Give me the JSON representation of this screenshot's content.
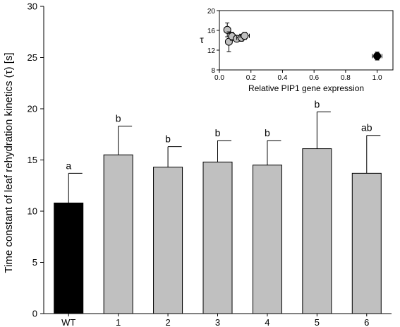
{
  "chart_data": [
    {
      "type": "bar",
      "ylabel": "Time constant of leaf rehydration kinetics  (τ) [s]",
      "xlabel": "",
      "ylim": [
        0,
        30
      ],
      "yticks": [
        0,
        5,
        10,
        15,
        20,
        25,
        30
      ],
      "categories": [
        "WT",
        "1",
        "2",
        "3",
        "4",
        "5",
        "6"
      ],
      "values": [
        10.8,
        15.5,
        14.3,
        14.8,
        14.5,
        16.1,
        13.7
      ],
      "errors": [
        2.9,
        2.8,
        2.0,
        2.1,
        2.4,
        3.6,
        3.7
      ],
      "letters": [
        "a",
        "b",
        "b",
        "b",
        "b",
        "b",
        "ab"
      ],
      "colors": [
        "#000000",
        "#c0c0c0",
        "#c0c0c0",
        "#c0c0c0",
        "#c0c0c0",
        "#c0c0c0",
        "#c0c0c0"
      ],
      "grid": false
    },
    {
      "type": "scatter",
      "placement": "inset top-right",
      "xlabel": "Relative PIP1 gene expression",
      "ylabel": "τ",
      "xlim": [
        0,
        1.1
      ],
      "ylim": [
        8,
        20
      ],
      "xticks": [
        0.0,
        0.2,
        0.4,
        0.6,
        0.8,
        1.0
      ],
      "yticks": [
        8,
        12,
        16,
        20
      ],
      "points": [
        {
          "x": 1.0,
          "y": 10.8,
          "xerr": 0.03,
          "yerr": 0.8,
          "color": "#000000"
        },
        {
          "x": 0.05,
          "y": 16.1,
          "xerr": 0.02,
          "yerr": 1.4,
          "color": "#c0c0c0"
        },
        {
          "x": 0.06,
          "y": 13.7,
          "xerr": 0.02,
          "yerr": 2.0,
          "color": "#c0c0c0"
        },
        {
          "x": 0.08,
          "y": 14.8,
          "xerr": 0.02,
          "yerr": 0.8,
          "color": "#c0c0c0"
        },
        {
          "x": 0.11,
          "y": 14.3,
          "xerr": 0.02,
          "yerr": 0.6,
          "color": "#c0c0c0"
        },
        {
          "x": 0.14,
          "y": 14.5,
          "xerr": 0.03,
          "yerr": 0.7,
          "color": "#c0c0c0"
        },
        {
          "x": 0.16,
          "y": 14.9,
          "xerr": 0.03,
          "yerr": 0.7,
          "color": "#c0c0c0"
        }
      ],
      "grid": false
    }
  ]
}
